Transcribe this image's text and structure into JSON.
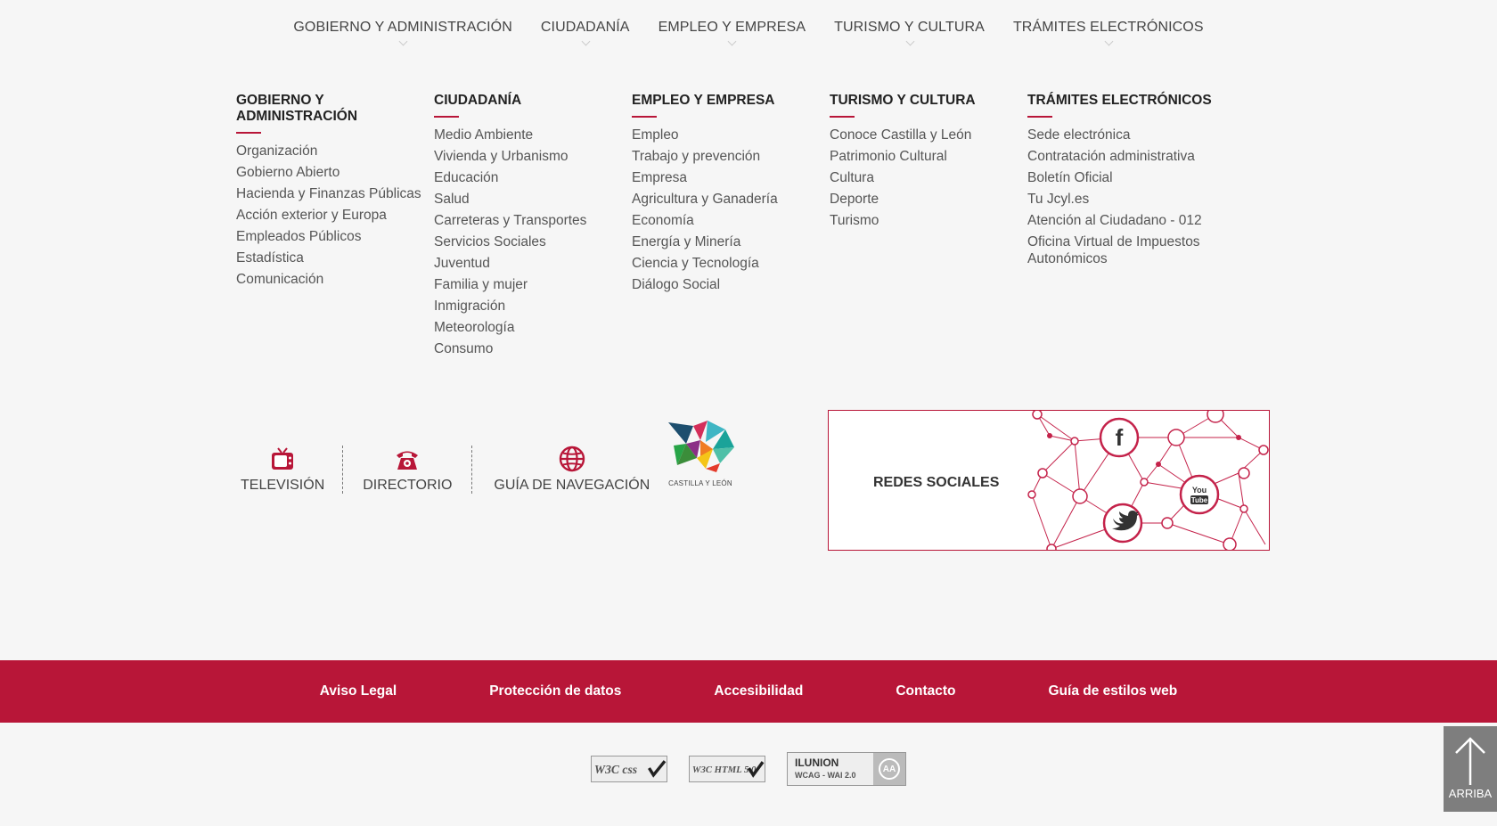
{
  "topnav": [
    "GOBIERNO Y ADMINISTRACIÓN",
    "CIUDADANÍA",
    "EMPLEO Y EMPRESA",
    "TURISMO Y CULTURA",
    "TRÁMITES ELECTRÓNICOS"
  ],
  "columns": [
    {
      "title": "GOBIERNO Y ADMINISTRACIÓN",
      "items": [
        "Organización",
        "Gobierno Abierto",
        "Hacienda y Finanzas Públicas",
        "Acción exterior y Europa",
        "Empleados Públicos",
        "Estadística",
        "Comunicación"
      ]
    },
    {
      "title": "CIUDADANÍA",
      "items": [
        "Medio Ambiente",
        "Vivienda y Urbanismo",
        "Educación",
        "Salud",
        "Carreteras y Transportes",
        "Servicios Sociales",
        "Juventud",
        "Familia y mujer",
        "Inmigración",
        "Meteorología",
        "Consumo"
      ]
    },
    {
      "title": "EMPLEO Y EMPRESA",
      "items": [
        "Empleo",
        "Trabajo y prevención",
        "Empresa",
        "Agricultura y Ganadería",
        "Economía",
        "Energía y Minería",
        "Ciencia y Tecnología",
        "Diálogo Social"
      ]
    },
    {
      "title": "TURISMO Y CULTURA",
      "items": [
        "Conoce Castilla y León",
        "Patrimonio Cultural",
        "Cultura",
        "Deporte",
        "Turismo"
      ]
    },
    {
      "title": "TRÁMITES ELECTRÓNICOS",
      "items": [
        "Sede electrónica",
        "Contratación administrativa",
        "Boletín Oficial",
        "Tu Jcyl.es",
        "Atención al Ciudadano - 012",
        "Oficina Virtual de Impuestos Autonómicos"
      ]
    }
  ],
  "services": {
    "tv": "TELEVISIÓN",
    "directory": "DIRECTORIO",
    "guide": "GUÍA DE NAVEGACIÓN"
  },
  "logo_text": "CASTILLA Y LEÓN",
  "social": {
    "label": "REDES SOCIALES",
    "facebook_glyph": "f",
    "youtube_glyph_1": "You",
    "youtube_glyph_2": "Tube"
  },
  "footer": [
    "Aviso Legal",
    "Protección de datos",
    "Accesibilidad",
    "Contacto",
    "Guía de estilos web"
  ],
  "badges": {
    "css": "W3C css",
    "html": "W3C HTML 5.0",
    "ilunion_1": "ILUNION",
    "ilunion_2": "WCAG - WAI 2.0",
    "ilunion_aa": "AA"
  },
  "arriba": "ARRIBA",
  "colors": {
    "accent": "#b81638"
  }
}
